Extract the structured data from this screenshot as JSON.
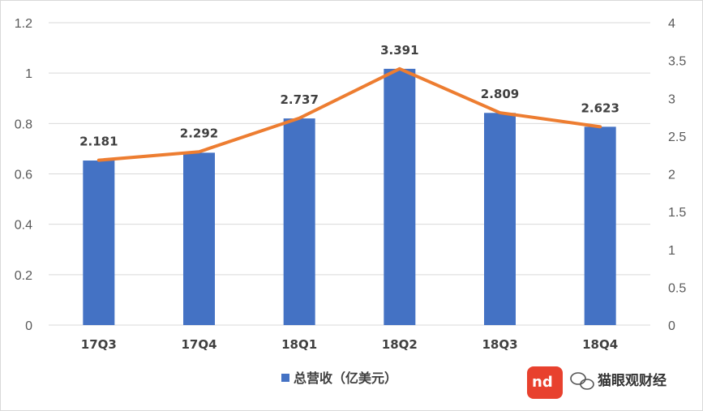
{
  "chart_data": {
    "type": "bar",
    "title": "",
    "categories": [
      "17Q3",
      "17Q4",
      "18Q1",
      "18Q2",
      "18Q3",
      "18Q4"
    ],
    "series": [
      {
        "name": "总营收（亿美元）",
        "type": "bar",
        "axis": "left",
        "color": "#4472C4",
        "values": [
          0.653,
          0.684,
          0.82,
          1.017,
          0.842,
          0.787
        ]
      },
      {
        "type": "line",
        "axis": "right",
        "color": "#ED7D31",
        "values": [
          2.181,
          2.292,
          2.737,
          3.391,
          2.809,
          2.623
        ],
        "labels": [
          "2.181",
          "2.292",
          "2.737",
          "3.391",
          "2.809",
          "2.623"
        ]
      }
    ],
    "y_left": {
      "min": 0,
      "max": 1.2,
      "step": 0.2,
      "tick_labels": [
        "0",
        "0.2",
        "0.4",
        "0.6",
        "0.8",
        "1",
        "1.2"
      ]
    },
    "y_right": {
      "min": 0,
      "max": 4,
      "step": 0.5,
      "tick_labels": [
        "0",
        "0.5",
        "1",
        "1.5",
        "2",
        "2.5",
        "3",
        "3.5",
        "4"
      ]
    },
    "grid": true,
    "legend": {
      "placement": "bottom-center",
      "label": "总营收（亿美元）"
    }
  },
  "watermark": {
    "logo_text": "nd",
    "text": "猫眼观财经"
  },
  "colors": {
    "bar": "#4472C4",
    "line": "#ED7D31",
    "grid": "#d9d9d9",
    "logo": "#e8412e"
  }
}
